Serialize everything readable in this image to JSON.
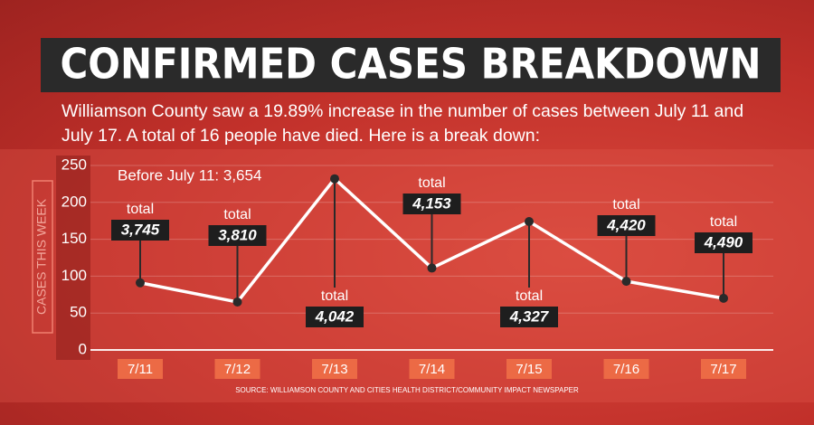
{
  "chart_data": {
    "type": "line",
    "title": "CONFIRMED CASES BREAKDOWN",
    "subtitle": "Williamson County saw a 19.89% increase in the number of cases between July 11 and July 17. A total of 16  people have died. Here is a break down:",
    "y_label": "CASES THIS WEEK",
    "note": "Before July 11: 3,654",
    "source": "SOURCE: WILLIAMSON COUNTY AND CITIES HEALTH DISTRICT/COMMUNITY IMPACT NEWSPAPER",
    "categories": [
      "7/11",
      "7/12",
      "7/13",
      "7/14",
      "7/15",
      "7/16",
      "7/17"
    ],
    "values": [
      91,
      65,
      232,
      111,
      174,
      93,
      70
    ],
    "color": "#ffffff",
    "annotations": [
      {
        "label": "total",
        "value": "3,745"
      },
      {
        "label": "total",
        "value": "3,810"
      },
      {
        "label": "total",
        "value": "4,042"
      },
      {
        "label": "total",
        "value": "4,153"
      },
      {
        "label": "total",
        "value": "4,327"
      },
      {
        "label": "total",
        "value": "4,420"
      },
      {
        "label": "total",
        "value": "4,490"
      }
    ],
    "ylim": [
      0,
      250
    ],
    "yticks": [
      0,
      50,
      100,
      150,
      200,
      250
    ],
    "grid": true
  }
}
